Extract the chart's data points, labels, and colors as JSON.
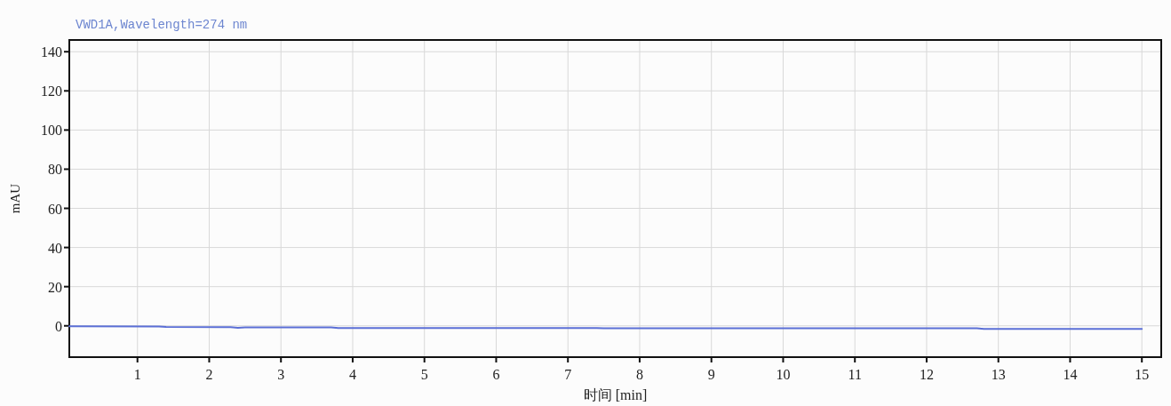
{
  "chart_data": {
    "type": "line",
    "title": "VWD1A,Wavelength=274 nm",
    "xlabel": "时间 [min]",
    "ylabel": "mAU",
    "x": [
      0.05,
      1.3,
      1.4,
      2.3,
      2.4,
      2.5,
      3.7,
      3.8,
      7.4,
      7.5,
      12.7,
      12.8,
      15
    ],
    "series": [
      {
        "color": "#5b6fd6",
        "values": [
          -0.2,
          -0.3,
          -0.6,
          -0.7,
          -1.0,
          -0.8,
          -0.8,
          -1.1,
          -1.1,
          -1.3,
          -1.3,
          -1.6,
          -1.6
        ]
      }
    ],
    "xlim": [
      0.05,
      15.27
    ],
    "ylim": [
      -16,
      146
    ],
    "xticks": [
      1,
      2,
      3,
      4,
      5,
      6,
      7,
      8,
      9,
      10,
      11,
      12,
      13,
      14,
      15
    ],
    "yticks": [
      0,
      20,
      40,
      60,
      80,
      100,
      120,
      140
    ],
    "grid": true,
    "marker": "none",
    "line_style": "solid"
  }
}
